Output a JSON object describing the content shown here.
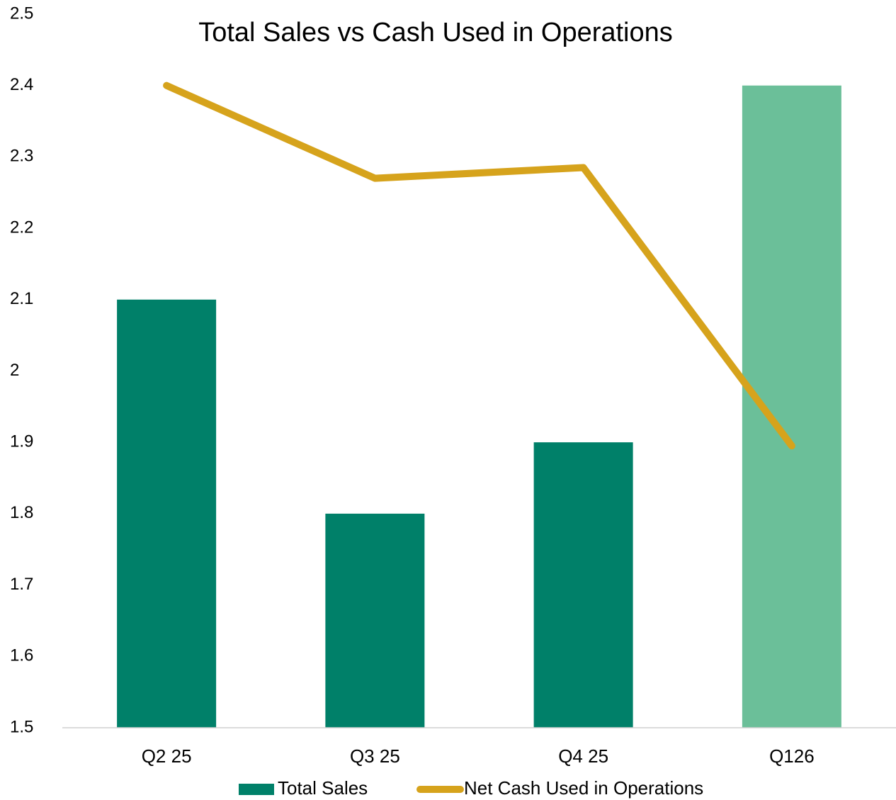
{
  "chart_data": {
    "type": "bar",
    "title": "Total Sales vs Cash Used in Operations",
    "categories": [
      "Q2 25",
      "Q3 25",
      "Q4 25",
      "Q126"
    ],
    "series": [
      {
        "name": "Total Sales",
        "type": "bar",
        "color": "#008069",
        "colors": [
          "#008069",
          "#008069",
          "#008069",
          "#6bbf99"
        ],
        "values": [
          2.1,
          1.8,
          1.9,
          2.4
        ]
      },
      {
        "name": "Net Cash Used in Operations",
        "type": "line",
        "color": "#d6a31c",
        "values": [
          2.4,
          2.27,
          2.285,
          1.895
        ]
      }
    ],
    "ylim": [
      1.5,
      2.5
    ],
    "yticks": [
      1.5,
      1.6,
      1.7,
      1.8,
      1.9,
      2,
      2.1,
      2.2,
      2.3,
      2.4,
      2.5
    ],
    "grid": false,
    "legend": "bottom"
  }
}
